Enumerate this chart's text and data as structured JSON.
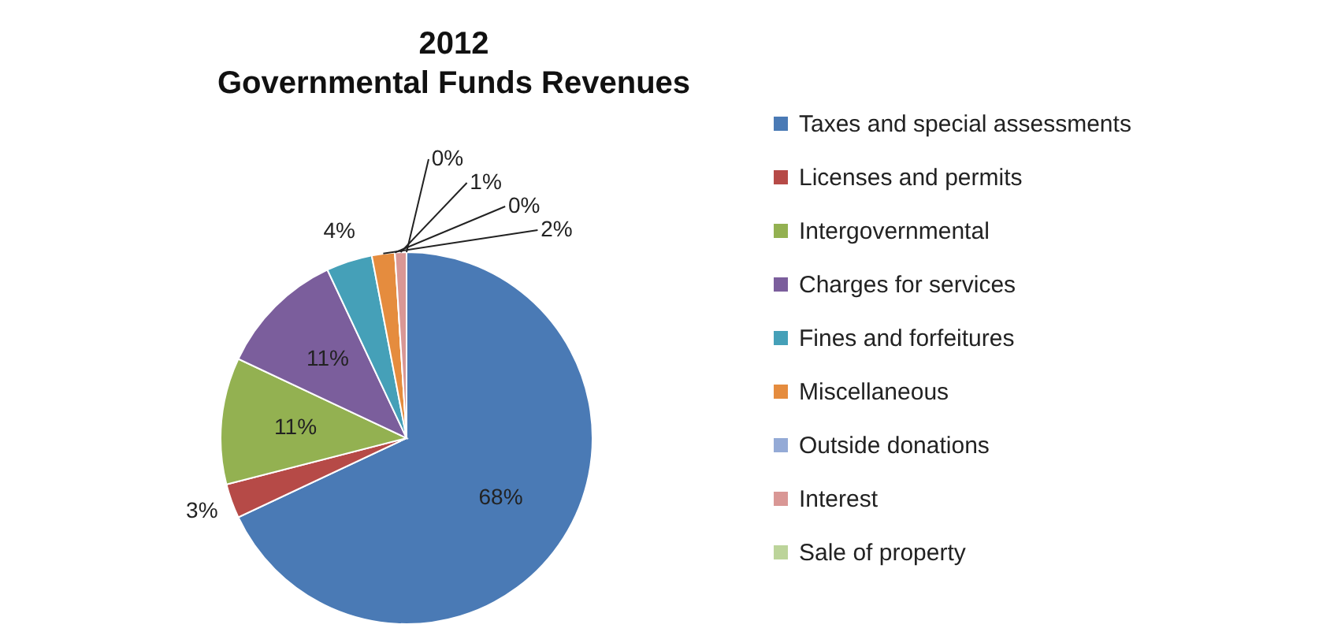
{
  "chart_data": {
    "type": "pie",
    "title": "2012\nGovernmental Funds Revenues",
    "categories": [
      "Taxes and special assessments",
      "Licenses and permits",
      "Intergovernmental",
      "Charges for services",
      "Fines and forfeitures",
      "Miscellaneous",
      "Outside donations",
      "Interest",
      "Sale of property"
    ],
    "values": [
      68,
      3,
      11,
      11,
      4,
      2,
      0,
      1,
      0
    ],
    "value_labels": [
      "68%",
      "3%",
      "11%",
      "11%",
      "4%",
      "2%",
      "0%",
      "1%",
      "0%"
    ],
    "colors": [
      "#4a7ab5",
      "#b64a47",
      "#93b151",
      "#7b5e9c",
      "#45a0b8",
      "#e58c3e",
      "#94aad6",
      "#d99795",
      "#bcd49a"
    ],
    "legend": "right"
  }
}
